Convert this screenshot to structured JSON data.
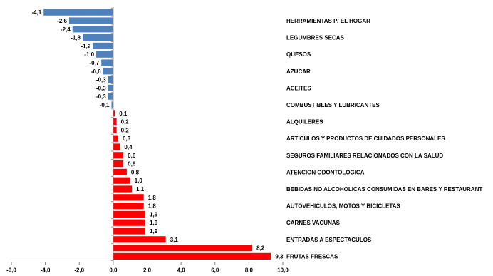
{
  "chart_data": {
    "type": "bar",
    "orientation": "horizontal",
    "values": [
      -4.1,
      -2.6,
      -2.4,
      -1.8,
      -1.2,
      -1.0,
      -0.7,
      -0.6,
      -0.3,
      -0.3,
      -0.3,
      -0.1,
      0.1,
      0.2,
      0.2,
      0.3,
      0.4,
      0.6,
      0.6,
      0.8,
      1.0,
      1.1,
      1.8,
      1.8,
      1.9,
      1.9,
      1.9,
      3.1,
      8.2,
      9.3
    ],
    "value_labels": [
      "-4,1",
      "-2,6",
      "-2,4",
      "-1,8",
      "-1,2",
      "-1,0",
      "-0,7",
      "-0,6",
      "-0,3",
      "-0,3",
      "-0,3",
      "-0,1",
      "0,1",
      "0,2",
      "0,2",
      "0,3",
      "0,4",
      "0,6",
      "0,6",
      "0,8",
      "1,0",
      "1,1",
      "1,8",
      "1,8",
      "1,9",
      "1,9",
      "1,9",
      "3,1",
      "8,2",
      "9,3"
    ],
    "category_labels": [
      {
        "index": 1,
        "text": "HERRAMIENTAS  P/ EL HOGAR"
      },
      {
        "index": 3,
        "text": "LEGUMBRES SECAS"
      },
      {
        "index": 5,
        "text": "QUESOS"
      },
      {
        "index": 7,
        "text": "AZUCAR"
      },
      {
        "index": 9,
        "text": "ACEITES"
      },
      {
        "index": 11,
        "text": "COMBUSTIBLES Y LUBRICANTES"
      },
      {
        "index": 13,
        "text": "ALQUILERES"
      },
      {
        "index": 15,
        "text": "ARTICULOS Y PRODUCTOS DE CUIDADOS PERSONALES"
      },
      {
        "index": 17,
        "text": "SEGUROS FAMILIARES RELACIONADOS CON LA SALUD"
      },
      {
        "index": 19,
        "text": "ATENCION ODONTOLOGICA"
      },
      {
        "index": 21,
        "text": "BEBIDAS NO ALCOHOLICAS CONSUMIDAS EN BARES Y RESTAURANT"
      },
      {
        "index": 23,
        "text": "AUTOVEHICULOS, MOTOS Y BICICLETAS"
      },
      {
        "index": 25,
        "text": "CARNES VACUNAS"
      },
      {
        "index": 27,
        "text": "ENTRADAS  A ESPECTACULOS"
      },
      {
        "index": 29,
        "text": "FRUTAS FRESCAS"
      }
    ],
    "x_ticks": [
      "-6,0",
      "-4,0",
      "-2,0",
      "0,0",
      "2,0",
      "4,0",
      "6,0",
      "8,0",
      "10,0"
    ],
    "xlim": [
      -6,
      10
    ],
    "colors": {
      "negative": "#4F81BD",
      "positive": "#FF0000"
    },
    "grid": false
  }
}
